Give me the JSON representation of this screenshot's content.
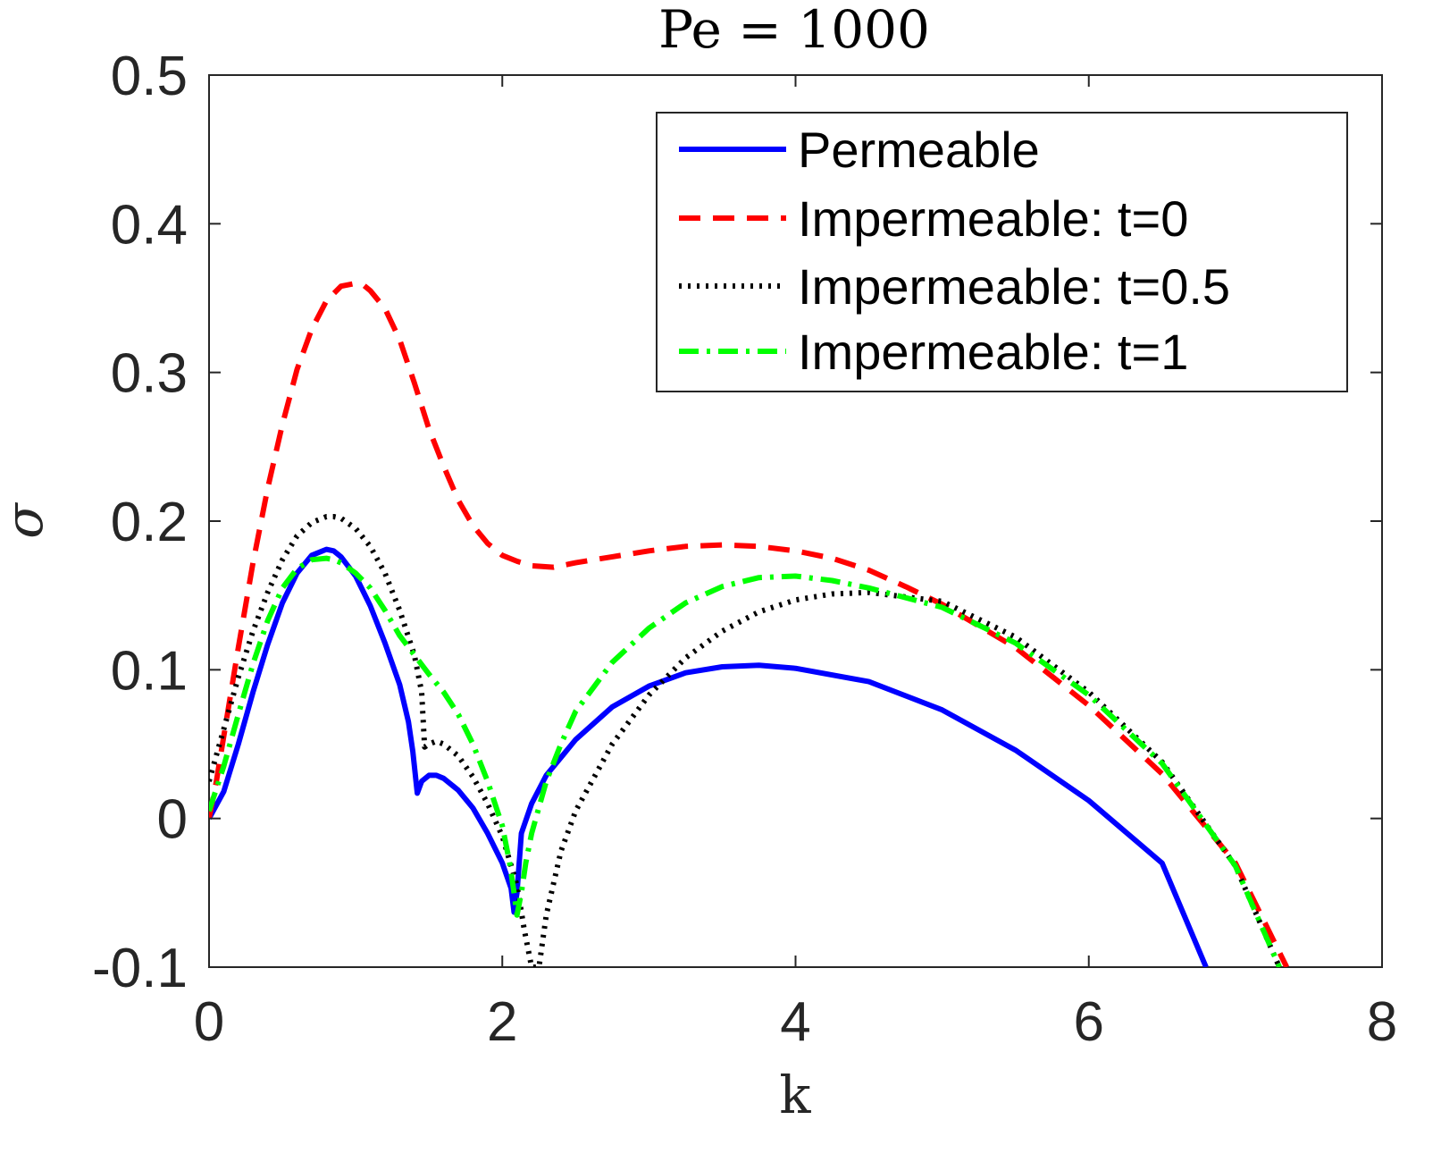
{
  "chart_data": {
    "type": "line",
    "title": "Pe = 1000",
    "xlabel": "k",
    "ylabel": "σ",
    "xlim": [
      0,
      8
    ],
    "ylim": [
      -0.1,
      0.5
    ],
    "xticks": [
      0,
      2,
      4,
      6,
      8
    ],
    "xtick_labels": [
      "0",
      "2",
      "4",
      "6",
      "8"
    ],
    "yticks": [
      -0.1,
      0,
      0.1,
      0.2,
      0.3,
      0.4,
      0.5
    ],
    "ytick_labels": [
      "-0.1",
      "0",
      "0.1",
      "0.2",
      "0.3",
      "0.4",
      "0.5"
    ],
    "grid": false,
    "legend_position": "top-right",
    "series": [
      {
        "name": "Permeable",
        "color": "#0000ff",
        "style": "solid",
        "x": [
          0,
          0.1,
          0.2,
          0.3,
          0.4,
          0.5,
          0.6,
          0.7,
          0.8,
          0.85,
          0.9,
          1.0,
          1.1,
          1.2,
          1.3,
          1.36,
          1.39,
          1.42,
          1.45,
          1.5,
          1.55,
          1.6,
          1.7,
          1.8,
          1.9,
          2.0,
          2.06,
          2.08,
          2.1,
          2.13,
          2.2,
          2.3,
          2.5,
          2.75,
          3.0,
          3.25,
          3.5,
          3.75,
          4.0,
          4.5,
          5.0,
          5.5,
          6.0,
          6.5,
          6.8
        ],
        "y": [
          0,
          0.018,
          0.05,
          0.085,
          0.117,
          0.145,
          0.165,
          0.177,
          0.181,
          0.18,
          0.176,
          0.163,
          0.143,
          0.118,
          0.09,
          0.065,
          0.045,
          0.017,
          0.025,
          0.029,
          0.029,
          0.027,
          0.019,
          0.007,
          -0.01,
          -0.03,
          -0.047,
          -0.063,
          -0.05,
          -0.01,
          0.01,
          0.029,
          0.053,
          0.075,
          0.089,
          0.098,
          0.102,
          0.103,
          0.101,
          0.092,
          0.073,
          0.046,
          0.012,
          -0.03,
          -0.1
        ]
      },
      {
        "name": "Impermeable: t=0",
        "color": "#ff0000",
        "style": "dashed",
        "x": [
          0,
          0.05,
          0.1,
          0.2,
          0.3,
          0.4,
          0.5,
          0.6,
          0.7,
          0.8,
          0.9,
          1.0,
          1.05,
          1.1,
          1.2,
          1.3,
          1.4,
          1.5,
          1.6,
          1.7,
          1.8,
          1.9,
          2.0,
          2.1,
          2.2,
          2.35,
          2.5,
          2.75,
          3.0,
          3.25,
          3.5,
          3.75,
          4.0,
          4.25,
          4.5,
          4.75,
          5.0,
          5.5,
          6.0,
          6.5,
          7.0,
          7.35
        ],
        "y": [
          0,
          0.025,
          0.055,
          0.115,
          0.172,
          0.222,
          0.265,
          0.302,
          0.329,
          0.348,
          0.358,
          0.36,
          0.359,
          0.355,
          0.343,
          0.322,
          0.293,
          0.262,
          0.237,
          0.214,
          0.197,
          0.185,
          0.177,
          0.173,
          0.17,
          0.169,
          0.172,
          0.176,
          0.18,
          0.183,
          0.184,
          0.183,
          0.18,
          0.175,
          0.167,
          0.156,
          0.144,
          0.115,
          0.076,
          0.03,
          -0.03,
          -0.1
        ]
      },
      {
        "name": "Impermeable: t=0.5",
        "color": "#000000",
        "style": "dotted",
        "x": [
          0,
          0.1,
          0.2,
          0.3,
          0.4,
          0.5,
          0.6,
          0.7,
          0.8,
          0.85,
          0.9,
          1.0,
          1.1,
          1.2,
          1.3,
          1.4,
          1.45,
          1.47,
          1.5,
          1.55,
          1.6,
          1.7,
          1.8,
          1.9,
          2.0,
          2.1,
          2.15,
          2.2,
          2.25,
          2.3,
          2.4,
          2.5,
          2.75,
          3.0,
          3.25,
          3.5,
          3.75,
          4.0,
          4.25,
          4.5,
          5.0,
          5.5,
          6.0,
          6.5,
          7.0,
          7.3
        ],
        "y": [
          0.025,
          0.06,
          0.095,
          0.126,
          0.152,
          0.174,
          0.19,
          0.199,
          0.203,
          0.203,
          0.202,
          0.195,
          0.183,
          0.165,
          0.14,
          0.11,
          0.085,
          0.048,
          0.05,
          0.052,
          0.05,
          0.042,
          0.028,
          0.01,
          -0.012,
          -0.045,
          -0.075,
          -0.1,
          -0.1,
          -0.065,
          -0.022,
          0.005,
          0.05,
          0.083,
          0.108,
          0.126,
          0.139,
          0.147,
          0.151,
          0.152,
          0.146,
          0.122,
          0.085,
          0.038,
          -0.032,
          -0.1
        ]
      },
      {
        "name": "Impermeable: t=1",
        "color": "#00ff00",
        "style": "dashdot",
        "x": [
          0,
          0.1,
          0.2,
          0.3,
          0.4,
          0.5,
          0.6,
          0.7,
          0.8,
          0.85,
          0.9,
          1.0,
          1.1,
          1.2,
          1.3,
          1.4,
          1.5,
          1.6,
          1.7,
          1.8,
          1.9,
          2.0,
          2.05,
          2.08,
          2.1,
          2.13,
          2.16,
          2.2,
          2.3,
          2.4,
          2.5,
          2.75,
          3.0,
          3.25,
          3.5,
          3.75,
          4.0,
          4.25,
          4.5,
          5.0,
          5.5,
          6.0,
          6.5,
          7.0,
          7.3
        ],
        "y": [
          0.005,
          0.035,
          0.07,
          0.104,
          0.133,
          0.155,
          0.168,
          0.174,
          0.175,
          0.174,
          0.172,
          0.165,
          0.155,
          0.14,
          0.123,
          0.11,
          0.097,
          0.085,
          0.07,
          0.05,
          0.025,
          -0.005,
          -0.03,
          -0.05,
          -0.065,
          -0.05,
          -0.03,
          -0.01,
          0.025,
          0.05,
          0.072,
          0.105,
          0.128,
          0.145,
          0.156,
          0.162,
          0.163,
          0.16,
          0.155,
          0.142,
          0.118,
          0.083,
          0.037,
          -0.032,
          -0.1
        ]
      }
    ]
  }
}
